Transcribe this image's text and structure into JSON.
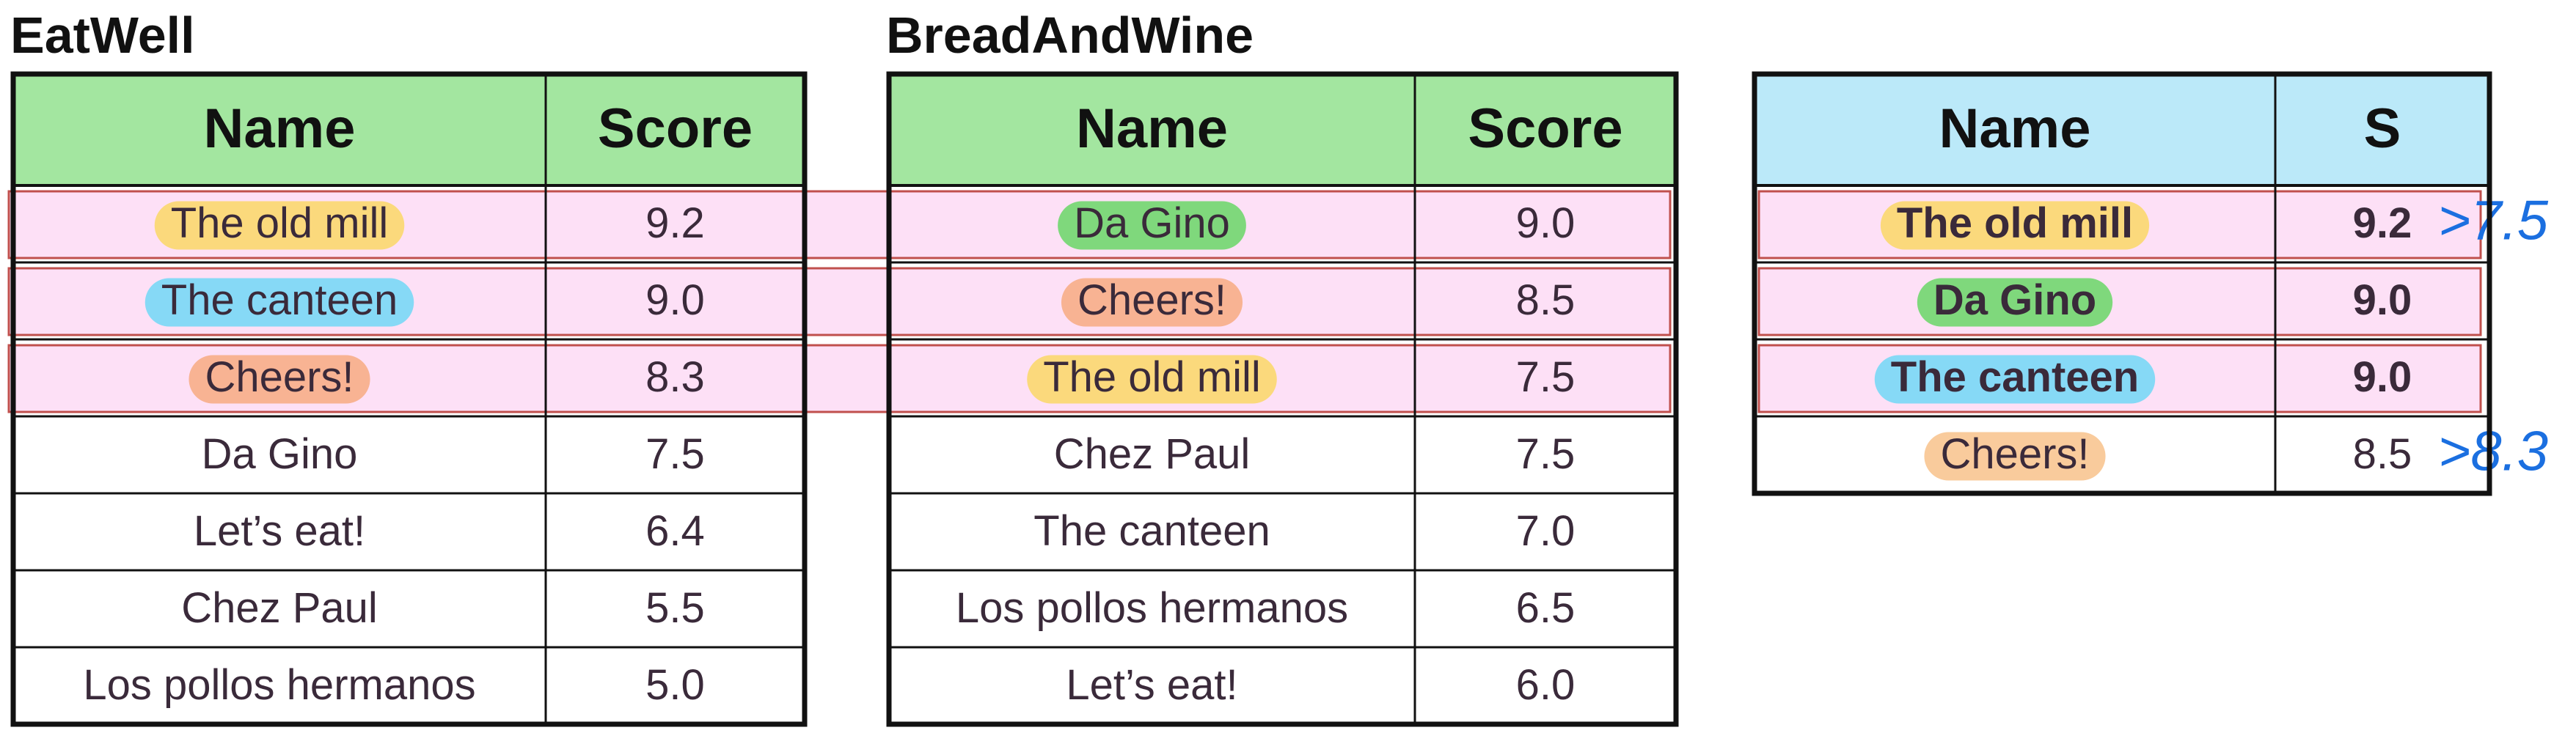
{
  "tables": [
    {
      "title": "EatWell",
      "header": [
        "Name",
        "Score"
      ],
      "header_color": "#a3e6a0",
      "rows": [
        {
          "name": "The old mill",
          "score": "9.2",
          "pill": "#fbd97c",
          "highlight": true
        },
        {
          "name": "The canteen",
          "score": "9.0",
          "pill": "#86d9f6",
          "highlight": true
        },
        {
          "name": "Cheers!",
          "score": "8.3",
          "pill": "#f8b393",
          "highlight": true
        },
        {
          "name": "Da Gino",
          "score": "7.5"
        },
        {
          "name": "Let’s eat!",
          "score": "6.4"
        },
        {
          "name": "Chez Paul",
          "score": "5.5"
        },
        {
          "name": "Los pollos hermanos",
          "score": "5.0"
        }
      ]
    },
    {
      "title": "BreadAndWine",
      "header": [
        "Name",
        "Score"
      ],
      "header_color": "#a3e6a0",
      "rows": [
        {
          "name": "Da Gino",
          "score": "9.0",
          "pill": "#7fd87c",
          "highlight": true
        },
        {
          "name": "Cheers!",
          "score": "8.5",
          "pill": "#f8b393",
          "highlight": true
        },
        {
          "name": "The old mill",
          "score": "7.5",
          "pill": "#fbd97c",
          "highlight": true
        },
        {
          "name": "Chez Paul",
          "score": "7.5"
        },
        {
          "name": "The canteen",
          "score": "7.0"
        },
        {
          "name": "Los pollos hermanos",
          "score": "6.5"
        },
        {
          "name": "Let’s eat!",
          "score": "6.0"
        }
      ]
    },
    {
      "header": [
        "Name",
        "S"
      ],
      "header_color": "#bbe9f9",
      "rows": [
        {
          "name": "The old mill",
          "score": "9.2",
          "pill": "#fbd97c",
          "highlight": true,
          "bold": true,
          "note": ">7.5"
        },
        {
          "name": "Da Gino",
          "score": "9.0",
          "pill": "#7fd87c",
          "highlight": true,
          "bold": true
        },
        {
          "name": "The canteen",
          "score": "9.0",
          "pill": "#86d9f6",
          "highlight": true,
          "bold": true
        },
        {
          "name": "Cheers!",
          "score": "8.5",
          "pill": "#f9cb9c",
          "note": ">8.3"
        }
      ]
    }
  ]
}
